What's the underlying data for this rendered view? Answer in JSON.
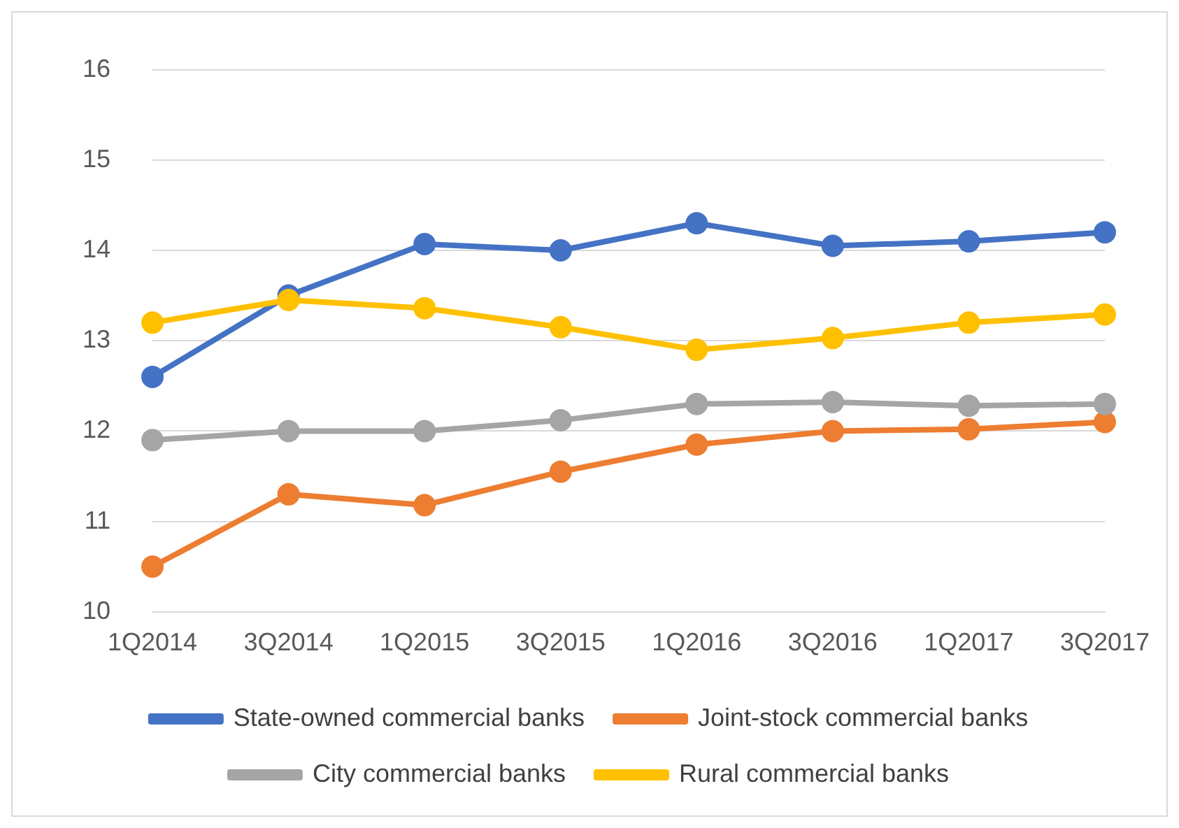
{
  "chart_data": {
    "type": "line",
    "categories": [
      "1Q2014",
      "3Q2014",
      "1Q2015",
      "3Q2015",
      "1Q2016",
      "3Q2016",
      "1Q2017",
      "3Q2017"
    ],
    "series": [
      {
        "name": "State-owned commercial banks",
        "color": "#4472c4",
        "values": [
          12.6,
          13.5,
          14.07,
          14.0,
          14.3,
          14.05,
          14.1,
          14.2
        ]
      },
      {
        "name": "Joint-stock commercial banks",
        "color": "#ed7d31",
        "values": [
          10.5,
          11.3,
          11.18,
          11.55,
          11.85,
          12.0,
          12.02,
          12.1
        ]
      },
      {
        "name": "City commercial banks",
        "color": "#a5a5a5",
        "values": [
          11.9,
          12.0,
          12.0,
          12.12,
          12.3,
          12.32,
          12.28,
          12.3
        ]
      },
      {
        "name": "Rural commercial banks",
        "color": "#ffc000",
        "values": [
          13.2,
          13.45,
          13.36,
          13.15,
          12.9,
          13.03,
          13.2,
          13.29
        ]
      }
    ],
    "ylim": [
      10,
      16
    ],
    "yticks": [
      10,
      11,
      12,
      13,
      14,
      15,
      16
    ],
    "grid": "y",
    "legend": "bottom",
    "marker": "circle",
    "line_style": "solid"
  }
}
